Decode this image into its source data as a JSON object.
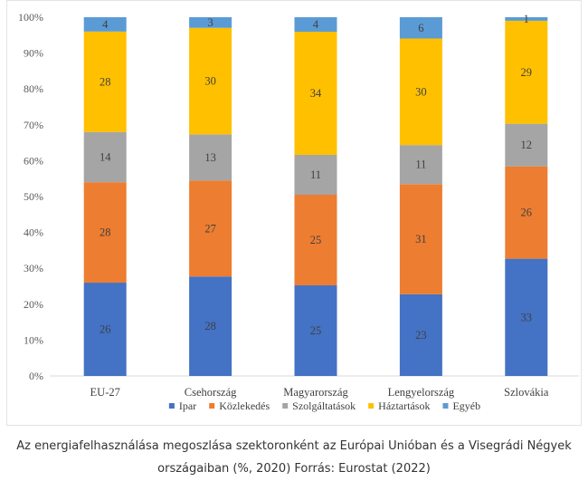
{
  "caption": "Az energiafelhasználása megoszlása szektoronként az Európai Unióban és a Visegrádi Négyek országaiban (%, 2020) Forrás: Eurostat (2022)",
  "chart_data": {
    "type": "bar",
    "stacked": true,
    "categories": [
      "EU-27",
      "Csehország",
      "Magyarország",
      "Lengyelország",
      "Szlovákia"
    ],
    "series": [
      {
        "name": "Ipar",
        "color": "#4472c4",
        "values": [
          26,
          28,
          25,
          23,
          33
        ]
      },
      {
        "name": "Közlekedés",
        "color": "#ed7d31",
        "values": [
          28,
          27,
          25,
          31,
          26
        ]
      },
      {
        "name": "Szolgáltatások",
        "color": "#a5a5a5",
        "values": [
          14,
          13,
          11,
          11,
          12
        ]
      },
      {
        "name": "Háztartások",
        "color": "#ffc000",
        "values": [
          28,
          30,
          34,
          30,
          29
        ]
      },
      {
        "name": "Egyéb",
        "color": "#5b9bd5",
        "values": [
          4,
          3,
          4,
          6,
          1
        ]
      }
    ],
    "yticks": [
      "0%",
      "10%",
      "20%",
      "30%",
      "40%",
      "50%",
      "60%",
      "70%",
      "80%",
      "90%",
      "100%"
    ],
    "ylim": [
      0,
      100
    ],
    "grid": false,
    "legend": "bottom"
  }
}
